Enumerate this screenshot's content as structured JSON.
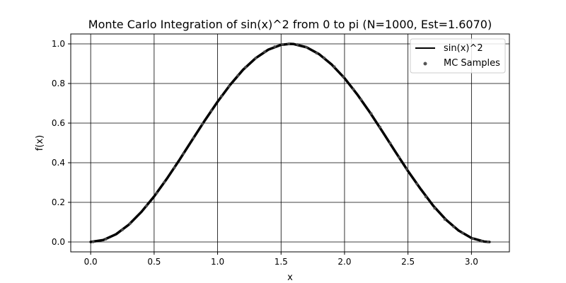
{
  "chart_data": {
    "type": "line",
    "title": "Monte Carlo Integration of sin(x)^2 from 0 to pi (N=1000, Est=1.6070)",
    "xlabel": "x",
    "ylabel": "f(x)",
    "xlim": [
      -0.157,
      3.299
    ],
    "ylim": [
      -0.05,
      1.05
    ],
    "xticks": [
      0.0,
      0.5,
      1.0,
      1.5,
      2.0,
      2.5,
      3.0
    ],
    "xtick_labels": [
      "0.0",
      "0.5",
      "1.0",
      "1.5",
      "2.0",
      "2.5",
      "3.0"
    ],
    "yticks": [
      0.0,
      0.2,
      0.4,
      0.6,
      0.8,
      1.0
    ],
    "ytick_labels": [
      "0.0",
      "0.2",
      "0.4",
      "0.6",
      "0.8",
      "1.0"
    ],
    "grid": true,
    "legend_position": "top-right",
    "series": [
      {
        "name": "sin(x)^2",
        "kind": "line",
        "color": "#000000",
        "x": [
          0.0,
          0.1,
          0.2,
          0.3,
          0.4,
          0.5,
          0.6,
          0.7,
          0.8,
          0.9,
          1.0,
          1.1,
          1.2,
          1.3,
          1.4,
          1.5,
          1.5708,
          1.6,
          1.7,
          1.8,
          1.9,
          2.0,
          2.1,
          2.2,
          2.3,
          2.4,
          2.5,
          2.6,
          2.7,
          2.8,
          2.9,
          3.0,
          3.1,
          3.1416
        ],
        "y": [
          0.0,
          0.01,
          0.039,
          0.087,
          0.152,
          0.23,
          0.319,
          0.415,
          0.515,
          0.614,
          0.708,
          0.794,
          0.869,
          0.928,
          0.971,
          0.995,
          1.0,
          0.999,
          0.983,
          0.948,
          0.895,
          0.827,
          0.745,
          0.654,
          0.556,
          0.456,
          0.358,
          0.267,
          0.182,
          0.112,
          0.057,
          0.02,
          0.002,
          0.0
        ]
      },
      {
        "name": "MC Samples",
        "kind": "scatter",
        "color": "#555555",
        "x": [
          0.02,
          0.12,
          0.25,
          0.31,
          0.44,
          0.52,
          0.58,
          0.66,
          0.73,
          0.81,
          0.88,
          0.95,
          1.03,
          1.09,
          1.16,
          1.22,
          1.3,
          1.37,
          1.45,
          1.51,
          1.56,
          1.63,
          1.7,
          1.78,
          1.84,
          1.92,
          1.99,
          2.07,
          2.13,
          2.21,
          2.28,
          2.36,
          2.43,
          2.49,
          2.57,
          2.64,
          2.71,
          2.79,
          2.86,
          2.93,
          3.01,
          3.08,
          3.13
        ],
        "y": [
          0.0004,
          0.014,
          0.061,
          0.093,
          0.182,
          0.247,
          0.302,
          0.375,
          0.446,
          0.525,
          0.595,
          0.663,
          0.736,
          0.786,
          0.84,
          0.882,
          0.928,
          0.96,
          0.986,
          0.997,
          1.0,
          0.997,
          0.983,
          0.953,
          0.929,
          0.885,
          0.833,
          0.771,
          0.719,
          0.648,
          0.58,
          0.499,
          0.428,
          0.368,
          0.293,
          0.228,
          0.17,
          0.114,
          0.077,
          0.045,
          0.017,
          0.0037,
          0.0001
        ]
      }
    ]
  }
}
